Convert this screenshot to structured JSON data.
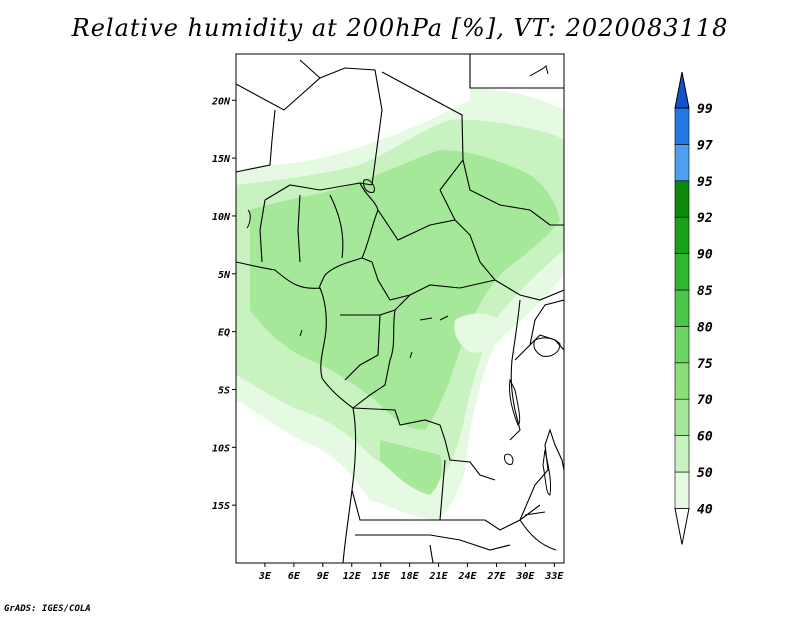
{
  "title": "Relative humidity at 200hPa [%], VT: 2020083118",
  "credit": "GrADS: IGES/COLA",
  "map": {
    "region": "Central Africa",
    "lon_range": [
      0,
      34
    ],
    "lat_range": [
      -20,
      24
    ],
    "lat_ticks": [
      {
        "label": "20N",
        "lat": 20
      },
      {
        "label": "15N",
        "lat": 15
      },
      {
        "label": "10N",
        "lat": 10
      },
      {
        "label": "5N",
        "lat": 5
      },
      {
        "label": "EQ",
        "lat": 0
      },
      {
        "label": "5S",
        "lat": -5
      },
      {
        "label": "10S",
        "lat": -10
      },
      {
        "label": "15S",
        "lat": -15
      }
    ],
    "lon_ticks": [
      {
        "label": "3E",
        "lon": 3
      },
      {
        "label": "6E",
        "lon": 6
      },
      {
        "label": "9E",
        "lon": 9
      },
      {
        "label": "12E",
        "lon": 12
      },
      {
        "label": "15E",
        "lon": 15
      },
      {
        "label": "18E",
        "lon": 18
      },
      {
        "label": "21E",
        "lon": 21
      },
      {
        "label": "24E",
        "lon": 24
      },
      {
        "label": "27E",
        "lon": 27
      },
      {
        "label": "30E",
        "lon": 30
      },
      {
        "label": "33E",
        "lon": 33
      }
    ]
  },
  "colorbar": {
    "levels": [
      "40",
      "50",
      "60",
      "70",
      "75",
      "80",
      "85",
      "90",
      "92",
      "95",
      "97",
      "99"
    ],
    "colors": [
      "#ffffff",
      "#e6fae3",
      "#c8f2c0",
      "#a6e89a",
      "#8ade7c",
      "#6cd462",
      "#4cc648",
      "#2eb82e",
      "#1a9f1a",
      "#0c880c",
      "#4f9ff0",
      "#2277e6",
      "#1450c8"
    ]
  },
  "colors": {
    "land_outline": "#000000",
    "humid_40_50": "#e6fae3",
    "humid_50_60": "#c8f2c0",
    "humid_60_70": "#a6e89a"
  }
}
